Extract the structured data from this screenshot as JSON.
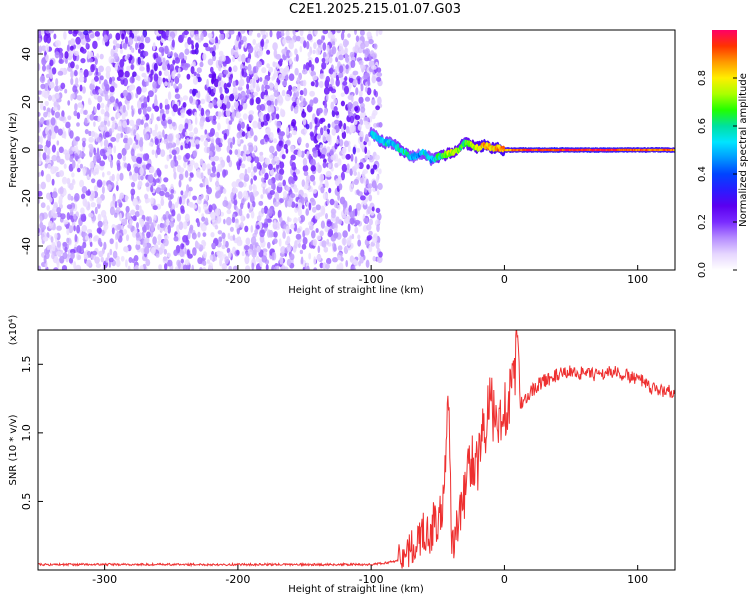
{
  "title": "C2E1.2025.215.01.07.G03",
  "chart_data": [
    {
      "type": "heatmap",
      "xlabel": "Height of straight line (km)",
      "ylabel": "Frequency (Hz)",
      "xlim": [
        -350,
        128
      ],
      "ylim": [
        -50,
        50
      ],
      "x_ticks": [
        -300,
        -200,
        -100,
        0,
        100
      ],
      "y_ticks": [
        -40,
        -20,
        0,
        20,
        40
      ],
      "grid": false,
      "colorbar": {
        "label": "Normalized spectral amplitude",
        "range": [
          0,
          1
        ],
        "ticks": [
          0.0,
          0.2,
          0.4,
          0.6,
          0.8
        ],
        "colors": [
          "#ffffff",
          "#e6d6ff",
          "#b58cff",
          "#7a2cff",
          "#5b00f0",
          "#2a1cff",
          "#0044ff",
          "#0099ff",
          "#00e5ff",
          "#00e0a0",
          "#22ff00",
          "#aaff00",
          "#ffee00",
          "#ff9900",
          "#ff3300",
          "#ff0066"
        ]
      },
      "noise_region": {
        "x": [
          -350,
          -93
        ],
        "y": [
          -50,
          50
        ],
        "amplitude_range": [
          0.05,
          0.3
        ]
      },
      "signal_track": {
        "x": [
          -100,
          -95,
          -90,
          -85,
          -80,
          -75,
          -70,
          -65,
          -60,
          -55,
          -50,
          -45,
          -40,
          -35,
          -30,
          -25,
          -20,
          -15,
          -10,
          -5,
          0,
          10,
          20,
          40,
          60,
          80,
          100,
          128
        ],
        "y": [
          7,
          5,
          3,
          3,
          1,
          -1,
          -3,
          -2,
          -1,
          -4,
          -3,
          -2,
          -1,
          0,
          3,
          2,
          1,
          2,
          1,
          1,
          0,
          0,
          0,
          0,
          0,
          0,
          0,
          0
        ],
        "amplitude": [
          0.5,
          0.5,
          0.55,
          0.5,
          0.55,
          0.6,
          0.5,
          0.45,
          0.55,
          0.5,
          0.6,
          0.7,
          0.75,
          0.7,
          0.65,
          0.75,
          0.8,
          0.85,
          0.8,
          0.85,
          0.85,
          0.9,
          0.95,
          0.95,
          0.95,
          0.95,
          0.9,
          0.9
        ]
      }
    },
    {
      "type": "line",
      "xlabel": "Height of straight line (km)",
      "ylabel": "SNR (10 * v/v)",
      "y_multiplier": "(x10⁴)",
      "xlim": [
        -350,
        128
      ],
      "ylim": [
        0,
        1.75
      ],
      "x_ticks": [
        -300,
        -200,
        -100,
        0,
        100
      ],
      "y_ticks": [
        0.5,
        1.0,
        1.5
      ],
      "grid": false,
      "color": "#ee3030",
      "series": [
        {
          "x": [
            -350,
            -300,
            -250,
            -200,
            -150,
            -120,
            -100,
            -90,
            -80,
            -75,
            -70,
            -65,
            -60,
            -55,
            -52,
            -50,
            -47,
            -45,
            -42,
            -40,
            -38,
            -35,
            -32,
            -30,
            -25,
            -20,
            -18,
            -15,
            -12,
            -10,
            -8,
            -5,
            -3,
            0,
            5,
            8,
            10,
            12,
            15,
            20,
            25,
            30,
            40,
            50,
            60,
            70,
            80,
            90,
            100,
            110,
            128
          ],
          "y": [
            0.04,
            0.04,
            0.04,
            0.04,
            0.04,
            0.04,
            0.04,
            0.05,
            0.07,
            0.12,
            0.15,
            0.2,
            0.3,
            0.25,
            0.4,
            0.3,
            0.45,
            0.55,
            1.3,
            0.3,
            0.15,
            0.35,
            0.45,
            0.55,
            0.85,
            0.75,
            0.9,
            1.05,
            1.15,
            1.2,
            1.1,
            1.0,
            1.15,
            1.2,
            1.25,
            1.45,
            1.75,
            1.2,
            1.25,
            1.3,
            1.35,
            1.38,
            1.42,
            1.45,
            1.43,
            1.42,
            1.45,
            1.42,
            1.4,
            1.32,
            1.3
          ]
        }
      ]
    }
  ]
}
